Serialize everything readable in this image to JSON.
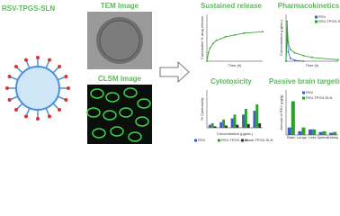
{
  "left": {
    "title": "RSV-TPGS-SLN"
  },
  "images": [
    {
      "label": "TEM Image"
    },
    {
      "label": "CLSM Image"
    }
  ],
  "charts": [
    {
      "type": "line",
      "title": "Sustained release",
      "x_label": "Time (h)",
      "y_label": "Cumulative % drug release",
      "xlim": [
        0,
        72
      ],
      "ylim": [
        0,
        100
      ],
      "series": [
        {
          "color": "#2ca02c",
          "x": [
            0,
            2,
            4,
            8,
            12,
            24,
            36,
            48,
            72
          ],
          "values": [
            0,
            18,
            28,
            38,
            44,
            52,
            56,
            60,
            63
          ]
        }
      ]
    },
    {
      "type": "line",
      "title": "Pharmacokinetics",
      "x_label": "Time (h)",
      "y_label": "Concentration (µg/mL)",
      "xlim": [
        0,
        24
      ],
      "ylim": [
        0,
        10
      ],
      "legend": "upper right",
      "series": [
        {
          "name": "RSV",
          "color": "#3a5fcd",
          "x": [
            0,
            0.5,
            1,
            2,
            4,
            8
          ],
          "values": [
            0,
            6,
            2,
            0.6,
            0.2,
            0
          ]
        },
        {
          "name": "RSV-TPGS-SLN",
          "color": "#2ca02c",
          "x": [
            0,
            0.5,
            1,
            2,
            4,
            8,
            12,
            24
          ],
          "values": [
            0,
            8.5,
            4,
            2.5,
            1.8,
            1.2,
            0.8,
            0.3
          ]
        }
      ]
    },
    {
      "type": "bar",
      "title": "Cytotoxicity",
      "x_label": "Concentration (µg/mL)",
      "y_label": "% Cytotoxicity",
      "ylim": [
        0,
        100
      ],
      "legend": "bottom",
      "categories": [
        null,
        null,
        null,
        null,
        null
      ],
      "series": [
        {
          "name": "RSV",
          "color": "#3a5fcd",
          "values": [
            8,
            15,
            25,
            35,
            45
          ]
        },
        {
          "name": "RSV-TPGS-SLN",
          "color": "#2ca02c",
          "values": [
            12,
            22,
            35,
            50,
            62
          ]
        },
        {
          "name": "Blank-TPGS-SLN",
          "color": "#333333",
          "values": [
            4,
            6,
            8,
            10,
            12
          ]
        }
      ]
    },
    {
      "type": "bar",
      "title": "Passive brain targeting",
      "y_label": "Amount of RSV (µg/g)",
      "ylim": [
        0,
        12
      ],
      "legend": "upper left",
      "categories": [
        "Brain",
        "Lungs",
        "Liver",
        "Spleen",
        "Kidney"
      ],
      "series": [
        {
          "name": "RSV",
          "color": "#3a5fcd",
          "values": [
            2,
            1,
            1.5,
            0.8,
            0.6
          ]
        },
        {
          "name": "RSV-TPGS-SLN",
          "color": "#2ca02c",
          "values": [
            9,
            2,
            1.5,
            1,
            0.8
          ]
        }
      ]
    }
  ]
}
